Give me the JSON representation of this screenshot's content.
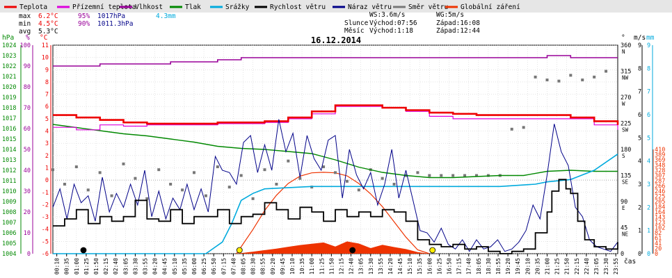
{
  "chart_data": {
    "type": "line",
    "title": "16.12.2014",
    "x_label": "čas",
    "x_ticks": [
      "00:10",
      "00:35",
      "01:00",
      "01:25",
      "01:50",
      "02:15",
      "02:40",
      "03:05",
      "03:30",
      "03:55",
      "04:20",
      "04:45",
      "05:10",
      "05:35",
      "06:00",
      "06:25",
      "06:50",
      "07:15",
      "07:40",
      "08:05",
      "08:30",
      "08:55",
      "09:20",
      "09:45",
      "10:10",
      "10:35",
      "11:00",
      "11:25",
      "11:50",
      "12:15",
      "12:40",
      "13:05",
      "13:30",
      "13:55",
      "14:20",
      "14:45",
      "15:10",
      "15:35",
      "16:00",
      "16:25",
      "16:50",
      "17:15",
      "17:40",
      "18:05",
      "18:30",
      "18:55",
      "19:20",
      "19:45",
      "20:10",
      "20:35",
      "21:00",
      "21:25",
      "21:50",
      "22:15",
      "22:40",
      "23:05",
      "23:30",
      "23:55"
    ],
    "x_tick_labels": [
      "00:10",
      "00:35",
      "01:00",
      "01:25",
      "01:50",
      "02:15",
      "02:40",
      "03:05",
      "03:30",
      "03:55",
      "04:20",
      "04:45",
      "05:10",
      "05:35",
      "06:00",
      "06:25",
      "06:50",
      "07:15",
      "07:40",
      "08:05",
      "08:30",
      "08:55",
      "09:20",
      "09:45",
      "10:10",
      "10:35",
      "11:00",
      "11:25",
      "11:50",
      "12:15",
      "12:40",
      "13:05",
      "13:30",
      "13:55",
      "14:20",
      "14:45",
      "15:10",
      "15:35",
      "16:00",
      "16:25",
      "16:50",
      "17:15",
      "17:40",
      "18:05",
      "18:30",
      "18:55",
      "19:20",
      "19:45",
      "20:10",
      "20:35",
      "21:00",
      "21:25",
      "21:50",
      "22:15",
      "22:40",
      "23:05",
      "23:30",
      "23:55"
    ],
    "axes": {
      "pressure": {
        "label": "hPa",
        "min": 1004,
        "max": 1024,
        "ticks": [
          1004,
          1005,
          1006,
          1007,
          1008,
          1009,
          1010,
          1011,
          1012,
          1013,
          1014,
          1015,
          1016,
          1017,
          1018,
          1019,
          1020,
          1021,
          1022,
          1023,
          1024
        ]
      },
      "humidity": {
        "label": "%",
        "min": 0,
        "max": 100,
        "ticks": [
          0,
          10,
          20,
          30,
          40,
          50,
          60,
          70,
          80,
          90,
          100
        ]
      },
      "temperature": {
        "label": "°C",
        "min": -6,
        "max": 11,
        "ticks": [
          -6,
          -5,
          -4,
          -3,
          -2,
          -1,
          0,
          1,
          2,
          3,
          4,
          5,
          6,
          7,
          8,
          9,
          10,
          11
        ]
      },
      "wind_dir": {
        "label": "°",
        "ticks": [
          0,
          45,
          90,
          135,
          180,
          225,
          270,
          315,
          360
        ],
        "tick_labels": [
          "0",
          "45",
          "90",
          "135",
          "180",
          "225",
          "270",
          "315",
          "360"
        ],
        "sub_labels": [
          "",
          "NE",
          "E",
          "SE",
          "S",
          "SW",
          "W",
          "NW",
          "N"
        ]
      },
      "wind_speed": {
        "label": "m/s",
        "min": 0,
        "max": 9,
        "ticks": [
          0,
          1,
          2,
          3,
          4,
          5,
          6,
          7,
          8,
          9
        ]
      },
      "rain": {
        "label": "mm",
        "min": 0,
        "max": 9,
        "ticks": [
          0,
          1,
          2,
          3,
          4,
          5,
          6,
          7,
          8,
          9
        ]
      },
      "radiation": {
        "min": 0,
        "max": 410,
        "ticks": [
          0,
          20,
          41,
          61,
          82,
          102,
          123,
          143,
          164,
          184,
          205,
          225,
          246,
          266,
          287,
          307,
          328,
          348,
          369,
          389,
          410
        ]
      }
    },
    "legend": [
      {
        "name": "Teplota",
        "color": "#ee0000"
      },
      {
        "name": "Přízemní teplota",
        "color": "#dd00dd"
      },
      {
        "name": "Vlhkost",
        "color": "#990099"
      },
      {
        "name": "Tlak",
        "color": "#008800"
      },
      {
        "name": "Srážky",
        "color": "#00aadd"
      },
      {
        "name": "Rychlost větru",
        "color": "#000000"
      },
      {
        "name": "Náraz větru",
        "color": "#000088"
      },
      {
        "name": "Směr větru",
        "color": "#777777"
      },
      {
        "name": "Globální záření",
        "color": "#ee3300"
      }
    ],
    "stats": {
      "max_label": "max",
      "min_label": "min",
      "avg_label": "avg",
      "max_temp": "6.2°C",
      "max_hum": "95%",
      "max_press": "1017hPa",
      "rain_total": "4.3mm",
      "min_temp": "4.5°C",
      "min_hum": "90%",
      "min_press": "1011.3hPa",
      "avg_temp": "5.3°C"
    },
    "info": {
      "ws": "WS:3.6m/s",
      "wg": "WG:5m/s",
      "sun_label": "Slunce",
      "sun_rise": "Východ:07:56",
      "sun_set": "Západ:16:08",
      "moon_label": "Měsíc",
      "moon_rise": "Východ:1:18",
      "moon_set": "Západ:12:44"
    },
    "series": {
      "temperature": {
        "name": "Teplota",
        "x_hours": [
          0,
          1,
          2,
          3,
          4,
          5,
          6,
          7,
          8,
          9,
          10,
          11,
          12,
          13,
          14,
          15,
          16,
          17,
          18,
          19,
          20,
          21,
          22,
          23,
          24
        ],
        "values": [
          5.3,
          5.1,
          4.9,
          4.7,
          4.6,
          4.6,
          4.6,
          4.7,
          4.7,
          4.8,
          5.1,
          5.6,
          6.1,
          6.1,
          5.9,
          5.7,
          5.5,
          5.4,
          5.3,
          5.3,
          5.3,
          5.3,
          5.1,
          4.8,
          4.5
        ]
      },
      "ground_temperature": {
        "name": "Přízemní teplota",
        "x_hours": [
          0,
          1,
          2,
          3,
          4,
          5,
          6,
          7,
          8,
          9,
          10,
          11,
          12,
          13,
          14,
          15,
          16,
          17,
          18,
          19,
          20,
          21,
          22,
          23,
          24
        ],
        "values": [
          4.3,
          4.1,
          4.5,
          4.4,
          4.5,
          4.5,
          4.5,
          4.6,
          4.6,
          4.7,
          5.0,
          5.4,
          6.0,
          6.0,
          5.9,
          5.6,
          5.2,
          5.0,
          5.0,
          5.0,
          5.0,
          5.0,
          5.0,
          4.5,
          4.1
        ]
      },
      "humidity": {
        "name": "Vlhkost",
        "x_hours": [
          0,
          1,
          2,
          3,
          4,
          5,
          6,
          7,
          8,
          9,
          10,
          11,
          12,
          13,
          14,
          15,
          16,
          17,
          18,
          19,
          20,
          21,
          22,
          23,
          24
        ],
        "values": [
          90,
          90,
          91,
          91,
          91,
          92,
          92,
          93,
          94,
          94,
          94,
          94,
          94,
          94,
          94,
          94,
          94,
          94,
          94,
          94,
          94,
          95,
          94,
          94,
          94
        ]
      },
      "pressure": {
        "name": "Tlak",
        "x_hours": [
          0,
          1,
          2,
          3,
          4,
          5,
          6,
          7,
          8,
          9,
          10,
          11,
          12,
          13,
          14,
          15,
          16,
          17,
          18,
          19,
          20,
          21,
          22,
          23,
          24
        ],
        "values": [
          1016.4,
          1016.1,
          1015.8,
          1015.5,
          1015.3,
          1015.0,
          1014.7,
          1014.3,
          1014.1,
          1014.0,
          1013.8,
          1013.6,
          1013.0,
          1012.3,
          1011.8,
          1011.5,
          1011.3,
          1011.3,
          1011.4,
          1011.5,
          1011.5,
          1011.9,
          1012.0,
          1011.9,
          1011.9
        ]
      },
      "rain": {
        "name": "Srážky",
        "x_hours": [
          0,
          6.5,
          7.2,
          7.6,
          8.0,
          8.5,
          9.0,
          11,
          13,
          15,
          17,
          19,
          20.5,
          21,
          22,
          23,
          24
        ],
        "values": [
          0,
          0,
          0.5,
          1.3,
          2.3,
          2.6,
          2.8,
          2.9,
          2.9,
          2.9,
          2.9,
          2.9,
          3.0,
          3.1,
          3.2,
          3.6,
          4.3
        ]
      },
      "wind_speed": {
        "name": "Rychlost větru",
        "x_hours": [
          0,
          0.5,
          1,
          1.5,
          2,
          2.5,
          3,
          3.5,
          4,
          4.5,
          5,
          5.5,
          6,
          6.5,
          7,
          7.5,
          8,
          8.5,
          9,
          9.5,
          10,
          10.5,
          11,
          11.5,
          12,
          12.5,
          13,
          13.5,
          14,
          14.5,
          15,
          15.5,
          16,
          16.5,
          17,
          17.5,
          18,
          18.5,
          19,
          19.5,
          20,
          20.5,
          21,
          21.2,
          21.5,
          21.8,
          22,
          22.3,
          22.6,
          23,
          23.5,
          24
        ],
        "values": [
          1.2,
          1.5,
          1.9,
          1.3,
          1.6,
          1.4,
          1.6,
          2.3,
          1.5,
          1.4,
          1.9,
          1.3,
          1.6,
          1.6,
          1.9,
          1.3,
          1.6,
          1.7,
          2.2,
          1.9,
          1.5,
          2.0,
          1.8,
          1.4,
          1.9,
          1.6,
          1.8,
          1.6,
          1.9,
          1.8,
          1.4,
          0.6,
          0.4,
          0.3,
          0.4,
          0.2,
          0.3,
          0.1,
          0,
          0.1,
          0.2,
          0.9,
          1.8,
          2.7,
          3.2,
          2.8,
          2.6,
          1.4,
          0.6,
          0.3,
          0.2,
          0.5
        ]
      },
      "wind_gust": {
        "name": "Náraz větru",
        "x_hours": [
          0,
          0.3,
          0.6,
          0.9,
          1.2,
          1.5,
          1.8,
          2.1,
          2.4,
          2.7,
          3.0,
          3.3,
          3.6,
          3.9,
          4.2,
          4.5,
          4.8,
          5.1,
          5.4,
          5.7,
          6.0,
          6.3,
          6.6,
          6.9,
          7.2,
          7.5,
          7.8,
          8.1,
          8.4,
          8.7,
          9.0,
          9.3,
          9.6,
          9.9,
          10.2,
          10.5,
          10.8,
          11.1,
          11.4,
          11.7,
          12.0,
          12.3,
          12.6,
          12.9,
          13.2,
          13.5,
          13.8,
          14.1,
          14.4,
          14.7,
          15.0,
          15.3,
          15.6,
          15.9,
          16.2,
          16.5,
          16.8,
          17.1,
          17.4,
          17.7,
          18.0,
          18.3,
          18.6,
          18.9,
          19.2,
          19.5,
          19.8,
          20.1,
          20.4,
          20.7,
          21.0,
          21.3,
          21.6,
          21.9,
          22.2,
          22.5,
          22.8,
          23.1,
          23.4,
          23.7,
          24.0
        ],
        "values": [
          2.0,
          2.8,
          1.5,
          3.0,
          2.2,
          2.5,
          1.4,
          3.3,
          1.8,
          2.6,
          2.0,
          3.0,
          2.1,
          3.6,
          1.6,
          2.7,
          1.5,
          2.4,
          1.9,
          3.0,
          1.9,
          2.8,
          1.8,
          4.2,
          3.6,
          3.5,
          3.0,
          4.8,
          5.1,
          3.5,
          4.7,
          3.6,
          5.8,
          4.4,
          5.2,
          3.3,
          5.1,
          4.1,
          3.6,
          4.9,
          5.1,
          2.4,
          4.5,
          3.4,
          2.8,
          3.5,
          2.1,
          3.0,
          4.5,
          2.4,
          3.6,
          2.3,
          1.0,
          0.9,
          0.5,
          1.1,
          0.4,
          0.2,
          0.6,
          0.1,
          0.6,
          0.2,
          0.3,
          0.6,
          0.1,
          0.2,
          0.5,
          1.0,
          2.1,
          1.5,
          3.4,
          5.6,
          4.4,
          3.8,
          2.0,
          1.6,
          0.6,
          0.3,
          0.2,
          0.1,
          0.5
        ]
      },
      "radiation": {
        "name": "Globální záření",
        "x_hours": [
          7.8,
          8.5,
          9,
          9.5,
          10,
          10.5,
          11,
          11.5,
          12,
          12.5,
          13,
          13.5,
          14,
          14.5,
          15,
          15.5,
          16
        ],
        "values": [
          0,
          8,
          14,
          20,
          27,
          34,
          39,
          44,
          28,
          48,
          40,
          22,
          35,
          26,
          18,
          6,
          0
        ]
      },
      "clear_sky_radiation": {
        "name": "",
        "x_hours": [
          7.8,
          8.5,
          9,
          9.5,
          10,
          10.5,
          11,
          11.5,
          12,
          12.5,
          13,
          13.5,
          14,
          14.5,
          15,
          15.5,
          16
        ],
        "values": [
          0,
          95,
          170,
          230,
          276,
          305,
          318,
          320,
          318,
          306,
          276,
          235,
          185,
          125,
          65,
          15,
          0
        ]
      },
      "wind_direction": {
        "name": "Směr větru",
        "x_hours": [
          0,
          0.5,
          1,
          1.5,
          2,
          2.5,
          3,
          3.5,
          4,
          4.5,
          5,
          5.5,
          6,
          6.5,
          7,
          7.5,
          8,
          8.5,
          9,
          9.5,
          10,
          10.5,
          11,
          11.5,
          12,
          12.5,
          13,
          13.5,
          14,
          14.5,
          15,
          15.5,
          16,
          16.5,
          17,
          17.5,
          18,
          18.5,
          19,
          19.5,
          20,
          20.5,
          21,
          21.5,
          22,
          22.5,
          23,
          23.5
        ],
        "values": [
          145,
          120,
          150,
          110,
          140,
          100,
          155,
          130,
          95,
          145,
          120,
          110,
          140,
          100,
          150,
          115,
          135,
          95,
          145,
          120,
          160,
          130,
          115,
          150,
          140,
          125,
          110,
          145,
          130,
          120,
          135,
          140,
          135,
          135,
          135,
          135,
          135,
          135,
          135,
          215,
          218,
          305,
          300,
          298,
          308,
          300,
          305,
          315
        ]
      }
    }
  }
}
